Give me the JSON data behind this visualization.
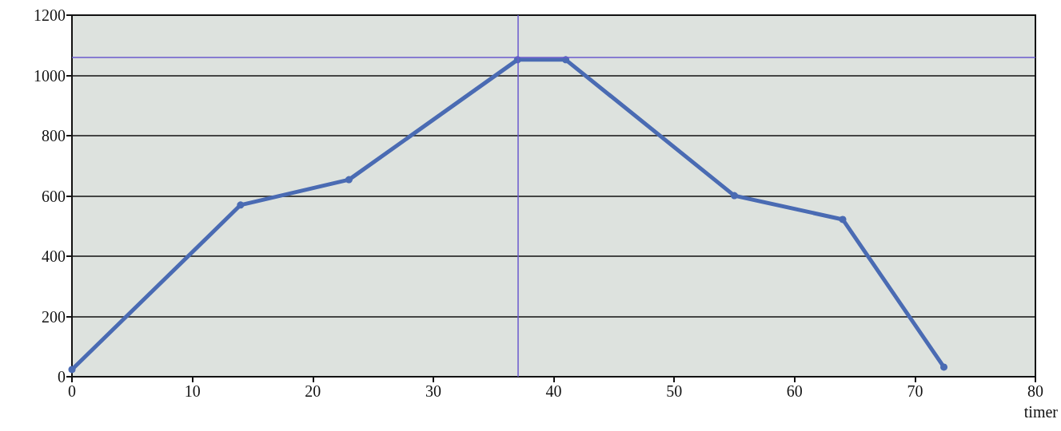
{
  "chart_data": {
    "type": "line",
    "xlabel": "timer",
    "x": [
      0,
      14,
      23,
      37,
      41,
      55,
      64,
      72.4
    ],
    "series": [
      {
        "color": "#4a6bb3",
        "values": [
          24,
          570,
          654,
          1052,
          1052,
          601,
          522,
          32
        ]
      }
    ],
    "xlim": [
      0,
      80
    ],
    "xticks": [
      0,
      10,
      20,
      30,
      40,
      50,
      60,
      70,
      80
    ],
    "ylim": [
      0,
      1200
    ],
    "yticks": [
      0,
      200,
      400,
      600,
      800,
      1000,
      1200
    ],
    "grid": "y",
    "marker": "circle",
    "line_style": "solid",
    "ref_lines": [
      {
        "axis": "y",
        "value": 1060,
        "color": "#6a5acd"
      },
      {
        "axis": "x",
        "value": 37,
        "color": "#6a5acd"
      }
    ]
  }
}
